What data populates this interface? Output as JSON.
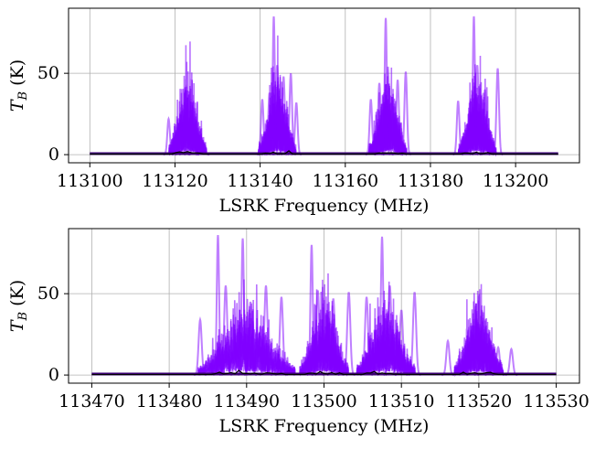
{
  "chart_data": [
    {
      "type": "line",
      "xlabel": "LSRK Frequency (MHz)",
      "ylabel": "T_B (K)",
      "ylabel_main": "T",
      "ylabel_sub": "B",
      "ylabel_unit": " (K)",
      "xlim": [
        113095,
        113215
      ],
      "ylim": [
        -5,
        90
      ],
      "xticks": [
        113100,
        113120,
        113140,
        113160,
        113180,
        113200
      ],
      "xtick_labels": [
        "113100",
        "113120",
        "113140",
        "113160",
        "113180",
        "113200"
      ],
      "yticks": [
        0,
        50
      ],
      "ytick_labels": [
        "0",
        "50"
      ],
      "grid": true,
      "line_range": [
        113100,
        113210
      ],
      "series_color": "#8000ff",
      "baseline_color": "#3a0070",
      "clusters": [
        {
          "center": 113123,
          "width": 3.5,
          "peaks": [
            {
              "x": 113118.5,
              "y": 22,
              "w": 0.3
            },
            {
              "x": 113121.3,
              "y": 25,
              "w": 0.3
            },
            {
              "x": 113122.2,
              "y": 24,
              "w": 0.3
            },
            {
              "x": 113124.5,
              "y": 18,
              "w": 0.3
            },
            {
              "x": 113126.5,
              "y": 8,
              "w": 0.4
            }
          ]
        },
        {
          "center": 113144,
          "width": 3.5,
          "peaks": [
            {
              "x": 113140.5,
              "y": 34,
              "w": 0.3
            },
            {
              "x": 113142.2,
              "y": 38,
              "w": 0.3
            },
            {
              "x": 113143.2,
              "y": 85,
              "w": 0.25
            },
            {
              "x": 113144.0,
              "y": 55,
              "w": 0.3
            },
            {
              "x": 113145.5,
              "y": 48,
              "w": 0.3
            },
            {
              "x": 113147.2,
              "y": 50,
              "w": 0.3
            },
            {
              "x": 113148.5,
              "y": 32,
              "w": 0.3
            }
          ]
        },
        {
          "center": 113170,
          "width": 3.5,
          "peaks": [
            {
              "x": 113166.0,
              "y": 34,
              "w": 0.3
            },
            {
              "x": 113168.0,
              "y": 44,
              "w": 0.3
            },
            {
              "x": 113169.5,
              "y": 84,
              "w": 0.25
            },
            {
              "x": 113170.0,
              "y": 54,
              "w": 0.3
            },
            {
              "x": 113172.3,
              "y": 46,
              "w": 0.3
            },
            {
              "x": 113174.2,
              "y": 51,
              "w": 0.3
            }
          ]
        },
        {
          "center": 113191,
          "width": 3.5,
          "peaks": [
            {
              "x": 113186.5,
              "y": 33,
              "w": 0.3
            },
            {
              "x": 113190.2,
              "y": 85,
              "w": 0.25
            },
            {
              "x": 113191.0,
              "y": 55,
              "w": 0.3
            },
            {
              "x": 113192.8,
              "y": 40,
              "w": 0.3
            },
            {
              "x": 113195.8,
              "y": 53,
              "w": 0.3
            }
          ]
        }
      ]
    },
    {
      "type": "line",
      "xlabel": "LSRK Frequency (MHz)",
      "ylabel": "T_B (K)",
      "ylabel_main": "T",
      "ylabel_sub": "B",
      "ylabel_unit": " (K)",
      "xlim": [
        113467,
        113533
      ],
      "ylim": [
        -5,
        90
      ],
      "xticks": [
        113470,
        113480,
        113490,
        113500,
        113510,
        113520,
        113530
      ],
      "xtick_labels": [
        "113470",
        "113480",
        "113490",
        "113500",
        "113510",
        "113520",
        "113530"
      ],
      "yticks": [
        0,
        50
      ],
      "ytick_labels": [
        "0",
        "50"
      ],
      "grid": true,
      "line_range": [
        113470,
        113530
      ],
      "series_color": "#8000ff",
      "baseline_color": "#3a0070",
      "clusters": [
        {
          "center": 113490,
          "width": 5,
          "peaks": [
            {
              "x": 113484.0,
              "y": 34,
              "w": 0.2
            },
            {
              "x": 113486.3,
              "y": 86,
              "w": 0.15
            },
            {
              "x": 113487.3,
              "y": 55,
              "w": 0.2
            },
            {
              "x": 113489.5,
              "y": 84,
              "w": 0.15
            },
            {
              "x": 113490.5,
              "y": 45,
              "w": 0.2
            },
            {
              "x": 113492.5,
              "y": 55,
              "w": 0.2
            },
            {
              "x": 113494.5,
              "y": 48,
              "w": 0.2
            }
          ]
        },
        {
          "center": 113500,
          "width": 2.5,
          "peaks": [
            {
              "x": 113498.4,
              "y": 80,
              "w": 0.15
            },
            {
              "x": 113499.2,
              "y": 52,
              "w": 0.2
            },
            {
              "x": 113501.2,
              "y": 47,
              "w": 0.2
            },
            {
              "x": 113503.2,
              "y": 51,
              "w": 0.2
            }
          ]
        },
        {
          "center": 113508,
          "width": 3,
          "peaks": [
            {
              "x": 113505.5,
              "y": 48,
              "w": 0.2
            },
            {
              "x": 113507.5,
              "y": 85,
              "w": 0.15
            },
            {
              "x": 113508.5,
              "y": 55,
              "w": 0.2
            },
            {
              "x": 113510.0,
              "y": 40,
              "w": 0.2
            },
            {
              "x": 113511.7,
              "y": 51,
              "w": 0.2
            }
          ]
        },
        {
          "center": 113520,
          "width": 2.5,
          "peaks": [
            {
              "x": 113516.0,
              "y": 21,
              "w": 0.2
            },
            {
              "x": 113519.2,
              "y": 25,
              "w": 0.2
            },
            {
              "x": 113520.2,
              "y": 24,
              "w": 0.2
            },
            {
              "x": 113522.5,
              "y": 17,
              "w": 0.2
            },
            {
              "x": 113524.2,
              "y": 16,
              "w": 0.2
            }
          ]
        }
      ]
    }
  ]
}
